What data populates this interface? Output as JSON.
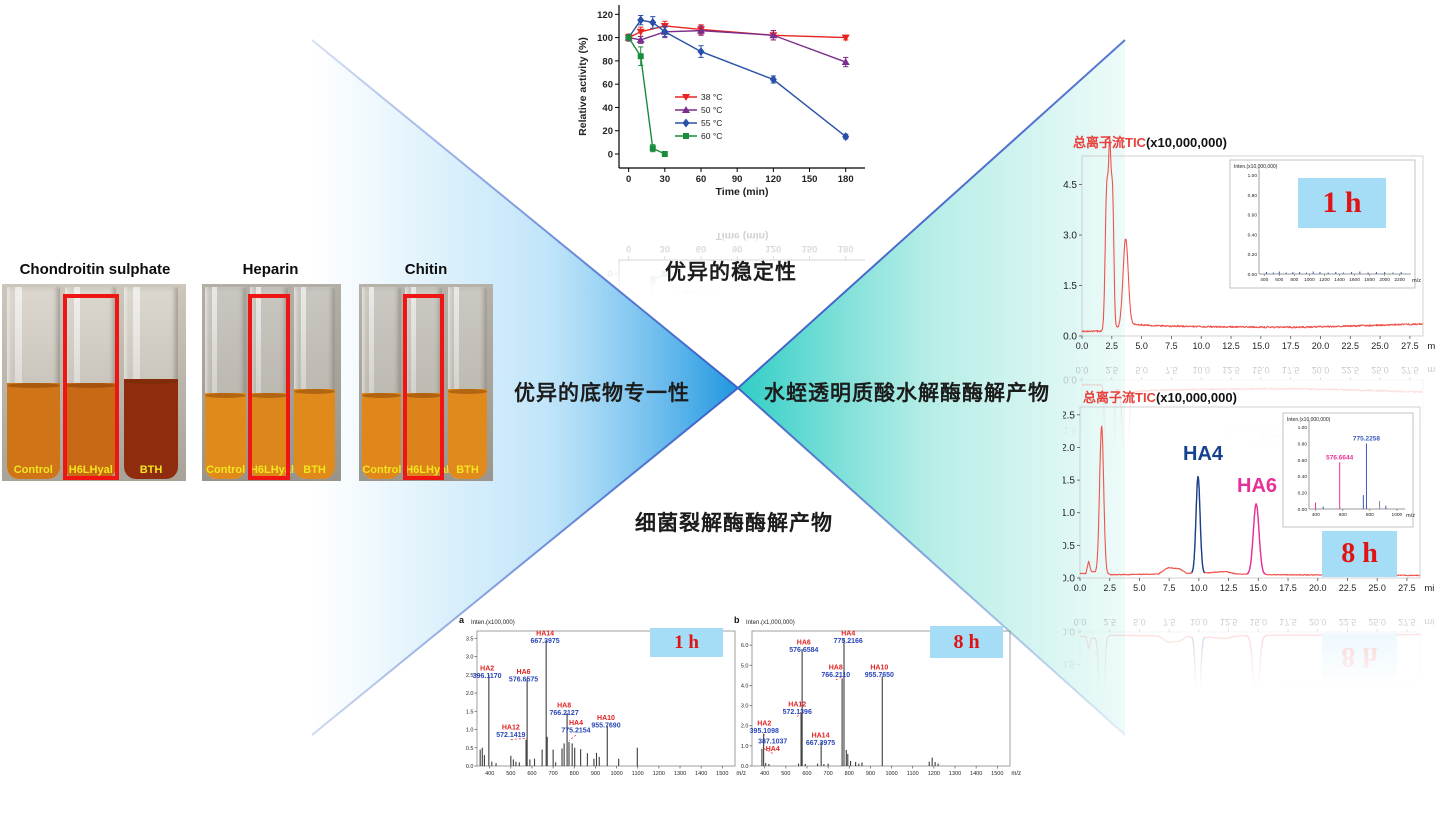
{
  "colors": {
    "x_line": "#3f62c8",
    "triangle_left": "#1e96e0",
    "triangle_left_mid": "#8fd0f5",
    "triangle_right": "#2ecdc5",
    "triangle_right_mid": "#9fe8df",
    "badge_bg": "#a6ddf6",
    "badge_text": "#e01414",
    "red_box": "#ee1512",
    "trace_red": "#f0524c",
    "ha4_blue": "#16418f",
    "ha6_magenta": "#e6309a"
  },
  "center": {
    "top_label": "优异的稳定性",
    "left_label": "优异的底物专一性",
    "right_label": "水蛭透明质酸水解酶酶解产物",
    "bottom_label": "细菌裂解酶酶解产物"
  },
  "photos": [
    {
      "title": "Chondroitin sulphate",
      "bg_top": "#cdc7bb",
      "bg_bottom": "#a8a399",
      "tubes": [
        {
          "label": "Control",
          "liquid": "#d07418",
          "fill": 0.5
        },
        {
          "label": "H6LHyal",
          "liquid": "#c86a15",
          "fill": 0.5
        },
        {
          "label": "BTH",
          "liquid": "#8f2c10",
          "fill": 0.52
        }
      ]
    },
    {
      "title": "Heparin",
      "bg_top": "#b3afa6",
      "bg_bottom": "#98948b",
      "tubes": [
        {
          "label": "Control",
          "liquid": "#e08a1c",
          "fill": 0.45
        },
        {
          "label": "H6LHyal",
          "liquid": "#dd861c",
          "fill": 0.45
        },
        {
          "label": "BTH",
          "liquid": "#e08a1c",
          "fill": 0.47
        }
      ]
    },
    {
      "title": "Chitin",
      "bg_top": "#b6b2a9",
      "bg_bottom": "#9a968d",
      "tubes": [
        {
          "label": "Control",
          "liquid": "#df871b",
          "fill": 0.45
        },
        {
          "label": "H6LHyal",
          "liquid": "#dc841b",
          "fill": 0.45
        },
        {
          "label": "BTH",
          "liquid": "#e0891c",
          "fill": 0.47
        }
      ]
    }
  ],
  "chart_data": [
    {
      "id": "stability",
      "type": "line",
      "xlabel": "Time (min)",
      "ylabel": "Relative activity (%)",
      "xlim": [
        -8,
        196
      ],
      "ylim": [
        -12,
        128
      ],
      "xticks": [
        0,
        30,
        60,
        90,
        120,
        150,
        180
      ],
      "yticks": [
        0,
        20,
        40,
        60,
        80,
        100,
        120
      ],
      "legend_position": "center-left-inside",
      "series": [
        {
          "name": "38 °C",
          "color": "#e8231f",
          "marker": "triangle-down",
          "x": [
            0,
            10,
            30,
            60,
            120,
            180
          ],
          "y": [
            100,
            105,
            110,
            107,
            102,
            100
          ],
          "err": [
            3,
            4,
            4,
            4,
            4,
            2
          ]
        },
        {
          "name": "50 °C",
          "color": "#7a2d8c",
          "marker": "triangle-up",
          "x": [
            0,
            10,
            30,
            60,
            120,
            180
          ],
          "y": [
            100,
            98,
            105,
            106,
            102,
            79
          ],
          "err": [
            2,
            3,
            5,
            4,
            4,
            4
          ]
        },
        {
          "name": "55 °C",
          "color": "#2850a8",
          "marker": "diamond",
          "x": [
            0,
            10,
            20,
            30,
            60,
            120,
            180
          ],
          "y": [
            100,
            115,
            113,
            105,
            88,
            64,
            15
          ],
          "err": [
            2,
            4,
            5,
            4,
            5,
            3,
            2
          ]
        },
        {
          "name": "60 °C",
          "color": "#1a8c3c",
          "marker": "square",
          "x": [
            0,
            10,
            20,
            30
          ],
          "y": [
            100,
            84,
            5,
            0
          ],
          "err": [
            2,
            8,
            3,
            2
          ]
        }
      ]
    },
    {
      "id": "tic-1h",
      "type": "line",
      "variant": "chromatogram",
      "title_red": "总离子流TIC",
      "title_black": "(x10,000,000)",
      "xlabel": "min",
      "xlim": [
        0,
        28.6
      ],
      "ylim": [
        0,
        5.35
      ],
      "xticks": [
        0,
        2.5,
        5,
        7.5,
        10,
        12.5,
        15,
        17.5,
        20,
        22.5,
        25,
        27.5
      ],
      "yticks": [
        0,
        1.5,
        3,
        4.5
      ],
      "ytick_labels": [
        "0.0",
        "1.5",
        "3.0",
        "4.5"
      ],
      "trace_color": "#f0524c",
      "noise": 0.045,
      "baseline": [
        [
          0,
          0.14
        ],
        [
          1.7,
          0.14
        ],
        [
          4.4,
          0.34
        ],
        [
          6.5,
          0.3
        ],
        [
          12,
          0.27
        ],
        [
          18,
          0.26
        ],
        [
          23,
          0.3
        ],
        [
          28.6,
          0.36
        ]
      ],
      "peaks": [
        {
          "t": 2.08,
          "h": 4.25,
          "w": 0.13
        },
        {
          "t": 2.33,
          "h": 4.62,
          "w": 0.1
        },
        {
          "t": 2.56,
          "h": 4.0,
          "w": 0.11
        },
        {
          "t": 3.66,
          "h": 2.6,
          "w": 0.22
        }
      ],
      "badge": {
        "label": "1 h"
      },
      "inset": {
        "ylabel": "Inten.(x10,000,000)",
        "xlabel": "m/z",
        "xlim": [
          330,
          2350
        ],
        "ylim": [
          0,
          1.05
        ],
        "xticks": [
          400,
          600,
          800,
          1000,
          1200,
          1400,
          1600,
          1800,
          2000,
          2200
        ],
        "yticks": [
          0,
          0.2,
          0.4,
          0.6,
          0.8,
          1.0
        ],
        "ytick_labels": [
          "0.00",
          "0.20",
          "0.40",
          "0.60",
          "0.80",
          "1.00"
        ],
        "sticks": [
          {
            "mz": 430,
            "h": 0.02
          },
          {
            "mz": 520,
            "h": 0.015
          },
          {
            "mz": 600,
            "h": 0.025
          },
          {
            "mz": 690,
            "h": 0.015
          },
          {
            "mz": 780,
            "h": 0.02
          },
          {
            "mz": 870,
            "h": 0.02
          },
          {
            "mz": 960,
            "h": 0.015
          },
          {
            "mz": 1050,
            "h": 0.025
          },
          {
            "mz": 1140,
            "h": 0.02
          },
          {
            "mz": 1250,
            "h": 0.015
          },
          {
            "mz": 1350,
            "h": 0.02
          },
          {
            "mz": 1450,
            "h": 0.015
          },
          {
            "mz": 1560,
            "h": 0.02
          },
          {
            "mz": 1670,
            "h": 0.025
          },
          {
            "mz": 1780,
            "h": 0.015
          },
          {
            "mz": 1890,
            "h": 0.02
          },
          {
            "mz": 2000,
            "h": 0.02
          },
          {
            "mz": 2110,
            "h": 0.015
          },
          {
            "mz": 2220,
            "h": 0.02
          }
        ]
      }
    },
    {
      "id": "tic-8h",
      "type": "line",
      "variant": "chromatogram",
      "title_red": "总离子流TIC",
      "title_black": "(x10,000,000)",
      "xlabel": "min",
      "xlim": [
        0,
        28.6
      ],
      "ylim": [
        0,
        2.62
      ],
      "xticks": [
        0,
        2.5,
        5,
        7.5,
        10,
        12.5,
        15,
        17.5,
        20,
        22.5,
        25,
        27.5
      ],
      "yticks": [
        0,
        0.5,
        1,
        1.5,
        2,
        2.5
      ],
      "ytick_labels": [
        "0.0",
        "0.5",
        "1.0",
        "1.5",
        "2.0",
        "2.5"
      ],
      "trace_color": "#f0524c",
      "noise": 0.012,
      "baseline": [
        [
          0,
          0.07
        ],
        [
          0.5,
          0.07
        ],
        [
          0.72,
          0.26
        ],
        [
          0.95,
          0.1
        ],
        [
          1.4,
          0.08
        ],
        [
          2.7,
          0.05
        ],
        [
          6.6,
          0.06
        ],
        [
          7.4,
          0.16
        ],
        [
          8.4,
          0.14
        ],
        [
          9.0,
          0.07
        ],
        [
          10.8,
          0.08
        ],
        [
          12.2,
          0.1
        ],
        [
          13.2,
          0.06
        ],
        [
          16,
          0.05
        ],
        [
          28.6,
          0.04
        ]
      ],
      "peaks": [
        {
          "t": 1.82,
          "h": 2.26,
          "w": 0.17
        },
        {
          "t": 9.93,
          "h": 1.48,
          "w": 0.17,
          "color": "#16418f",
          "name": "HA4"
        },
        {
          "t": 14.82,
          "h": 1.08,
          "w": 0.24,
          "color": "#e6309a",
          "name": "HA6"
        }
      ],
      "peak_labels": [
        {
          "text": "HA4",
          "color": "#16418f"
        },
        {
          "text": "HA6",
          "color": "#e6309a"
        }
      ],
      "badge": {
        "label": "8 h"
      },
      "inset": {
        "ylabel": "Inten.(x10,000,000)",
        "xlabel": "m/z",
        "xlim": [
          350,
          1060
        ],
        "ylim": [
          0,
          1.05
        ],
        "xticks": [
          400,
          600,
          800,
          1000
        ],
        "yticks": [
          0,
          0.2,
          0.4,
          0.6,
          0.8,
          1.0
        ],
        "ytick_labels": [
          "0.00",
          "0.20",
          "0.40",
          "0.60",
          "0.80",
          "1.00"
        ],
        "sticks": [
          {
            "mz": 398,
            "h": 0.08,
            "color": "#e6309a"
          },
          {
            "mz": 455,
            "h": 0.03,
            "color": "#3a5bbf"
          },
          {
            "mz": 577,
            "h": 0.57,
            "color": "#e6309a",
            "label": "576.6644"
          },
          {
            "mz": 752,
            "h": 0.17,
            "color": "#3a5bbf"
          },
          {
            "mz": 775,
            "h": 0.8,
            "color": "#3a5bbf",
            "label": "775.2258"
          },
          {
            "mz": 872,
            "h": 0.1,
            "color": "#888888"
          },
          {
            "mz": 918,
            "h": 0.04,
            "color": "#3a5bbf"
          }
        ]
      }
    },
    {
      "id": "ms-1h",
      "type": "bar",
      "variant": "mass-spectrum",
      "panel": "a",
      "ylabel": "Inten.(x100,000)",
      "xlabel": "m/z",
      "xlim": [
        340,
        1560
      ],
      "ylim": [
        0,
        3.7
      ],
      "xticks": [
        400,
        500,
        600,
        700,
        800,
        900,
        1000,
        1100,
        1200,
        1300,
        1400,
        1500
      ],
      "yticks": [
        0,
        0.5,
        1,
        1.5,
        2,
        2.5,
        3,
        3.5
      ],
      "ytick_labels": [
        "0.0",
        "0.5",
        "1.0",
        "1.5",
        "2.0",
        "2.5",
        "3.0",
        "3.5"
      ],
      "badge": {
        "label": "1 h"
      },
      "sticks": [
        {
          "mz": 355,
          "h": 0.45
        },
        {
          "mz": 365,
          "h": 0.5
        },
        {
          "mz": 375,
          "h": 0.3
        },
        {
          "mz": 396,
          "h": 2.5
        },
        {
          "mz": 410,
          "h": 0.12
        },
        {
          "mz": 430,
          "h": 0.08
        },
        {
          "mz": 500,
          "h": 0.28
        },
        {
          "mz": 512,
          "h": 0.18
        },
        {
          "mz": 524,
          "h": 0.12
        },
        {
          "mz": 540,
          "h": 0.1
        },
        {
          "mz": 572,
          "h": 0.72
        },
        {
          "mz": 577,
          "h": 2.4
        },
        {
          "mz": 590,
          "h": 0.18
        },
        {
          "mz": 612,
          "h": 0.2
        },
        {
          "mz": 648,
          "h": 0.45
        },
        {
          "mz": 667,
          "h": 3.45
        },
        {
          "mz": 672,
          "h": 0.8
        },
        {
          "mz": 700,
          "h": 0.45
        },
        {
          "mz": 712,
          "h": 0.1
        },
        {
          "mz": 742,
          "h": 0.48
        },
        {
          "mz": 752,
          "h": 0.62
        },
        {
          "mz": 766,
          "h": 1.45
        },
        {
          "mz": 775,
          "h": 0.66
        },
        {
          "mz": 790,
          "h": 0.62
        },
        {
          "mz": 802,
          "h": 0.5
        },
        {
          "mz": 830,
          "h": 0.46
        },
        {
          "mz": 862,
          "h": 0.35
        },
        {
          "mz": 893,
          "h": 0.2
        },
        {
          "mz": 905,
          "h": 0.36
        },
        {
          "mz": 918,
          "h": 0.25
        },
        {
          "mz": 956,
          "h": 1.1
        },
        {
          "mz": 1010,
          "h": 0.2
        },
        {
          "mz": 1098,
          "h": 0.5
        }
      ],
      "labels": [
        {
          "name": "HA2",
          "value": "396.1170",
          "mz": 396,
          "lx": 388,
          "ly": 2.62
        },
        {
          "name": "HA12",
          "value": "572.1419",
          "mz": 572,
          "lx": 500,
          "ly": 1.0,
          "leader": true
        },
        {
          "name": "HA6",
          "value": "576.6575",
          "mz": 577,
          "lx": 560,
          "ly": 2.52
        },
        {
          "name": "HA14",
          "value": "667.3975",
          "mz": 667,
          "lx": 662,
          "ly": 3.58
        },
        {
          "name": "HA8",
          "value": "766.2127",
          "mz": 766,
          "lx": 752,
          "ly": 1.6
        },
        {
          "name": "HA4",
          "value": "775.2154",
          "mz": 775,
          "lx": 808,
          "ly": 1.12,
          "leader": true
        },
        {
          "name": "HA10",
          "value": "955.7690",
          "mz": 956,
          "lx": 950,
          "ly": 1.26
        }
      ]
    },
    {
      "id": "ms-8h",
      "type": "bar",
      "variant": "mass-spectrum",
      "panel": "b",
      "ylabel": "Inten.(x1,000,000)",
      "xlabel": "m/z",
      "xlim": [
        340,
        1560
      ],
      "ylim": [
        0,
        6.7
      ],
      "xticks": [
        400,
        500,
        600,
        700,
        800,
        900,
        1000,
        1100,
        1200,
        1300,
        1400,
        1500
      ],
      "yticks": [
        0,
        1,
        2,
        3,
        4,
        5,
        6
      ],
      "ytick_labels": [
        "0.0",
        "1.0",
        "2.0",
        "3.0",
        "4.0",
        "5.0",
        "6.0"
      ],
      "badge": {
        "label": "8 h"
      },
      "sticks": [
        {
          "mz": 387,
          "h": 0.85
        },
        {
          "mz": 395,
          "h": 1.6
        },
        {
          "mz": 405,
          "h": 0.15
        },
        {
          "mz": 420,
          "h": 0.1
        },
        {
          "mz": 560,
          "h": 0.12
        },
        {
          "mz": 572,
          "h": 2.6
        },
        {
          "mz": 577,
          "h": 5.8
        },
        {
          "mz": 592,
          "h": 0.1
        },
        {
          "mz": 650,
          "h": 0.12
        },
        {
          "mz": 667,
          "h": 1.2
        },
        {
          "mz": 680,
          "h": 0.1
        },
        {
          "mz": 700,
          "h": 0.12
        },
        {
          "mz": 766,
          "h": 4.35
        },
        {
          "mz": 775,
          "h": 6.35
        },
        {
          "mz": 786,
          "h": 0.8
        },
        {
          "mz": 793,
          "h": 0.6
        },
        {
          "mz": 806,
          "h": 0.25
        },
        {
          "mz": 830,
          "h": 0.2
        },
        {
          "mz": 845,
          "h": 0.12
        },
        {
          "mz": 860,
          "h": 0.18
        },
        {
          "mz": 956,
          "h": 4.45
        },
        {
          "mz": 1178,
          "h": 0.22
        },
        {
          "mz": 1192,
          "h": 0.42
        },
        {
          "mz": 1206,
          "h": 0.2
        },
        {
          "mz": 1220,
          "h": 0.12
        }
      ],
      "labels": [
        {
          "name": "HA4",
          "value": "775.2166",
          "mz": 775,
          "lx": 795,
          "ly": 6.48
        },
        {
          "name": "HA6",
          "value": "576.6584",
          "mz": 577,
          "lx": 585,
          "ly": 6.02
        },
        {
          "name": "HA8",
          "value": "766.2110",
          "mz": 766,
          "lx": 736,
          "ly": 4.78,
          "leader": true
        },
        {
          "name": "HA10",
          "value": "955.7650",
          "mz": 956,
          "lx": 942,
          "ly": 4.78
        },
        {
          "name": "HA12",
          "value": "572.1396",
          "mz": 572,
          "lx": 554,
          "ly": 2.95,
          "leader": true
        },
        {
          "name": "HA2",
          "value": "395.1098",
          "mz": 395,
          "lx": 398,
          "ly": 2.0,
          "leader": true
        },
        {
          "name": "HA14",
          "value": "667.3975",
          "mz": 667,
          "lx": 664,
          "ly": 1.42
        },
        {
          "name": "HA4",
          "value": "387.1037",
          "mz": 387,
          "lx": 438,
          "ly": 1.12,
          "leader": true,
          "flip": true
        }
      ]
    }
  ]
}
